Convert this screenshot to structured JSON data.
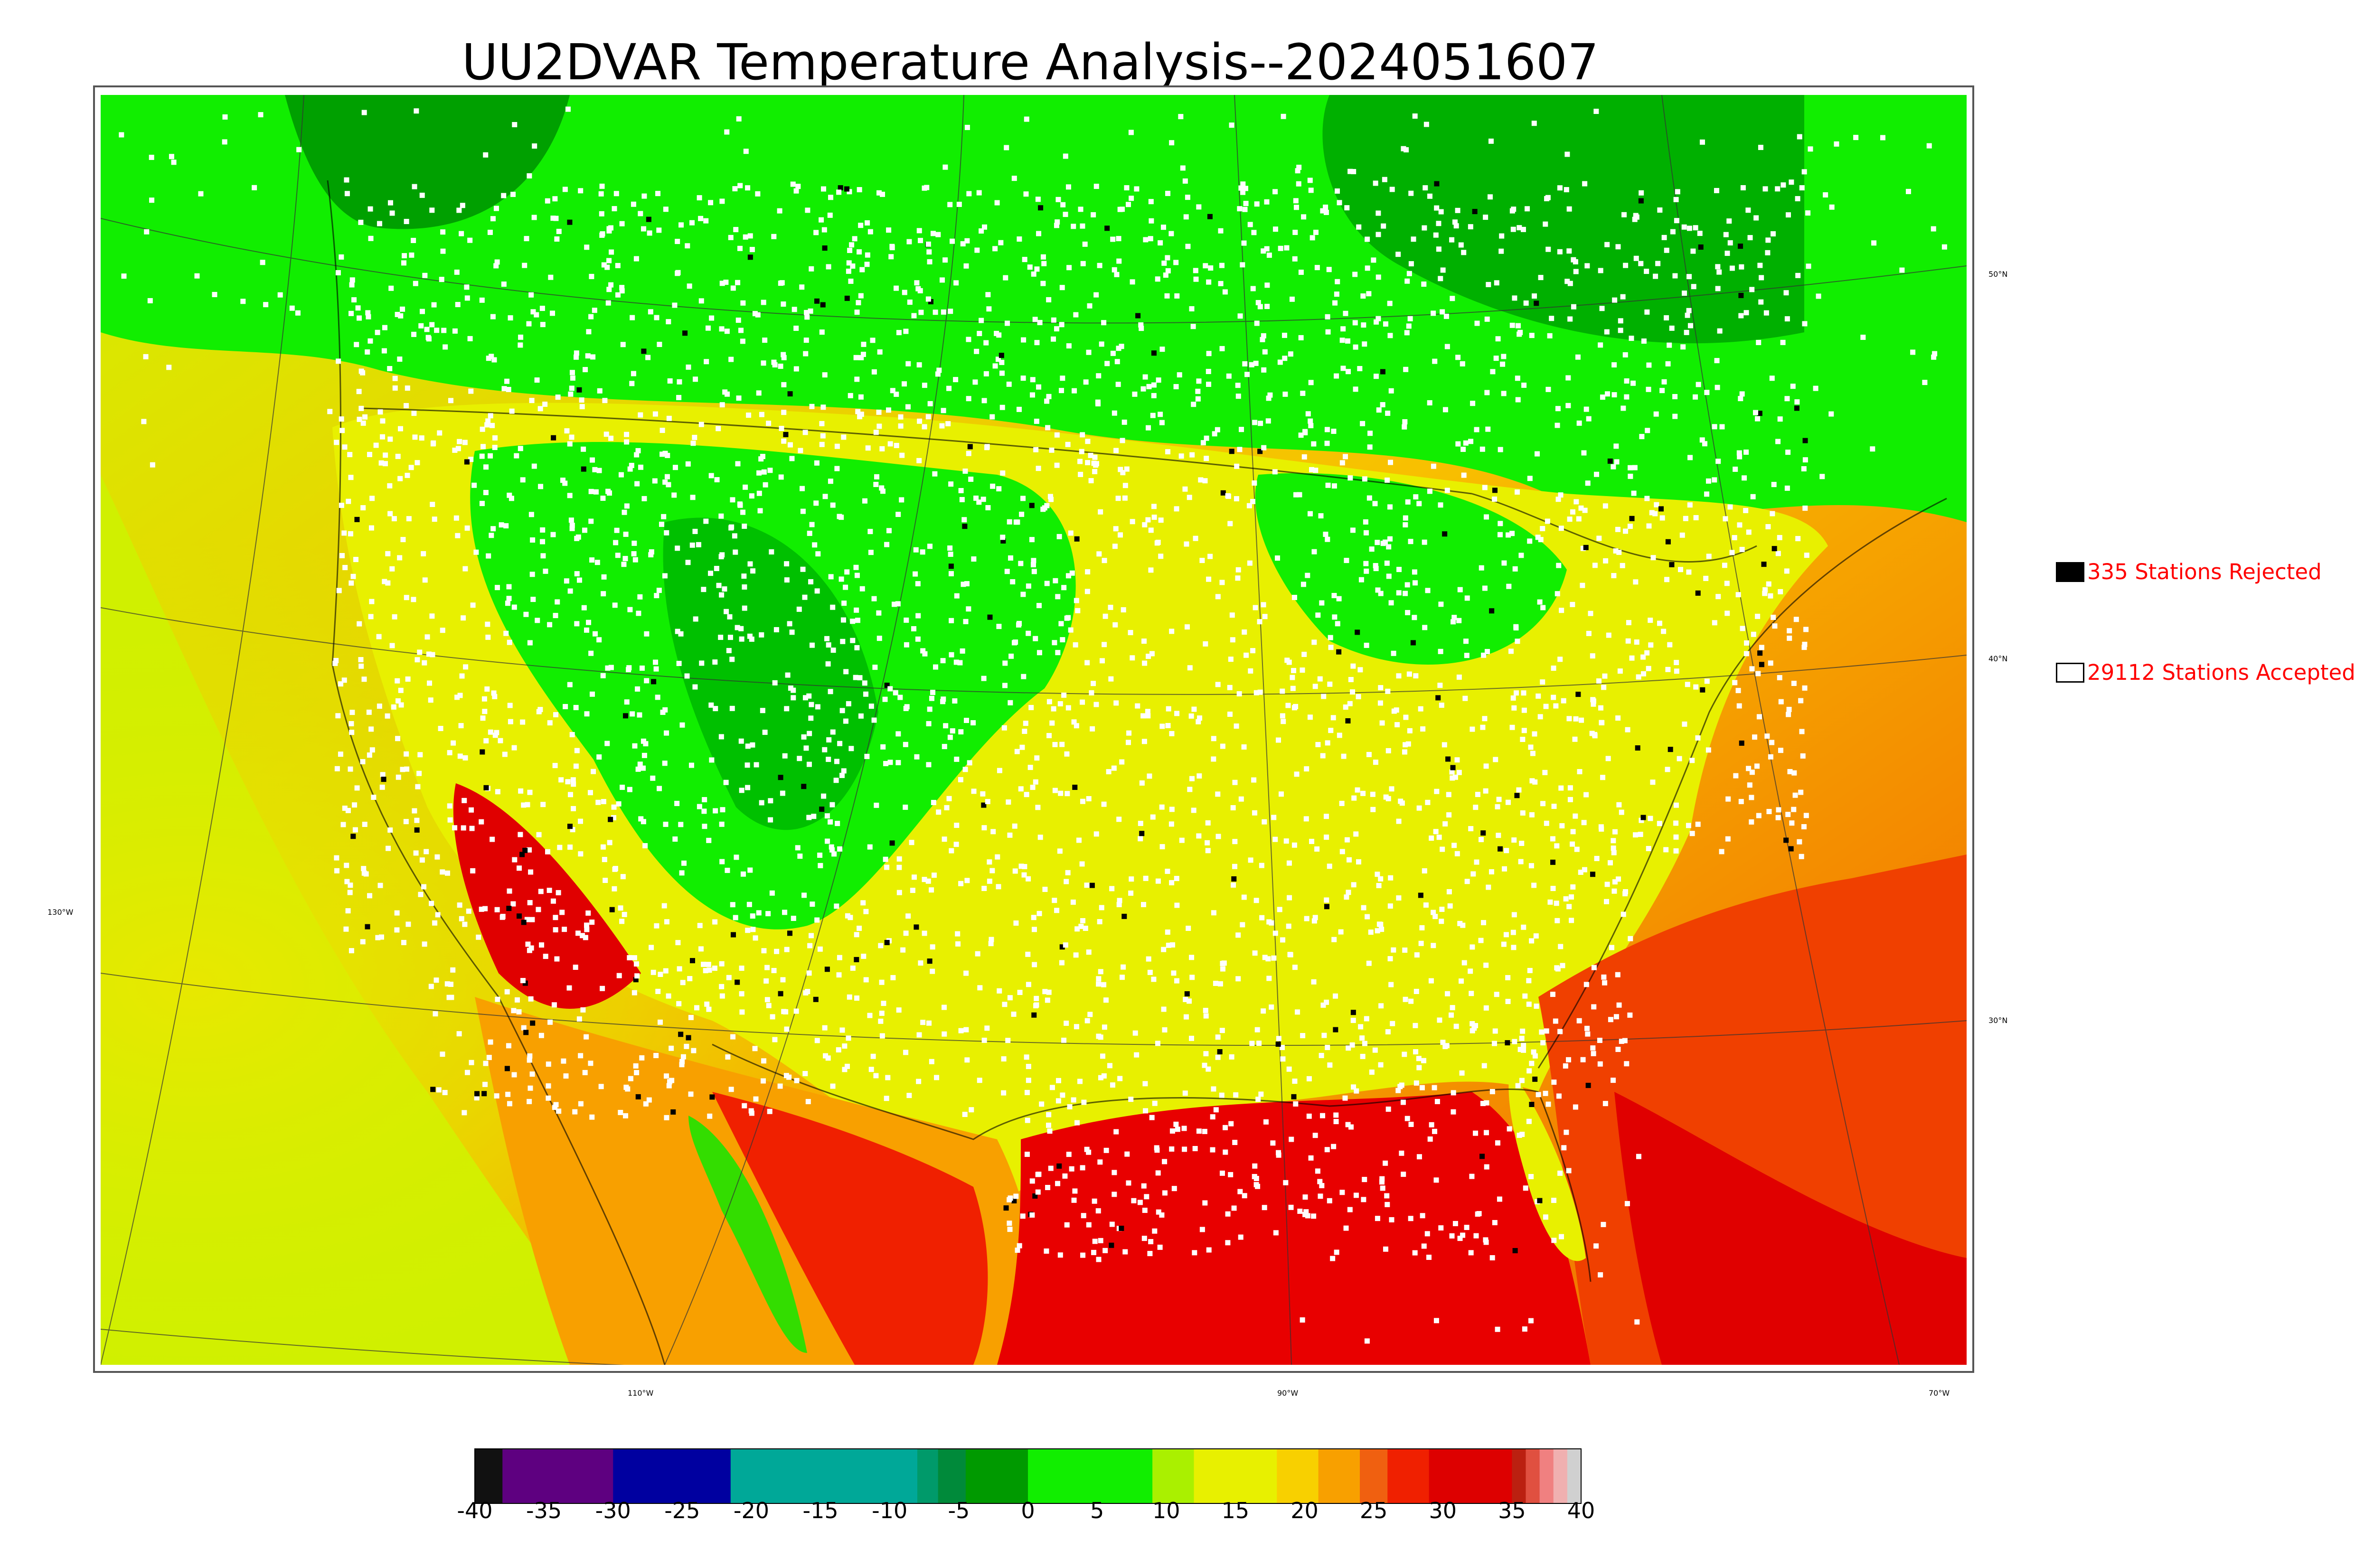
{
  "title": "UU2DVAR Temperature Analysis--2024051607",
  "legend": {
    "rejected": {
      "label": "335 Stations Rejected",
      "swatch_color": "#000000"
    },
    "accepted": {
      "label": "29112 Stations Accepted",
      "swatch_color": "#ffffff"
    },
    "text_color": "#ff0000"
  },
  "graticule_labels": {
    "lat": [
      "50°N",
      "40°N",
      "30°N"
    ],
    "lon": [
      "130°W",
      "110°W",
      "90°W",
      "70°W"
    ]
  },
  "colorbar": {
    "min": -40,
    "max": 40,
    "ticks": [
      "-40",
      "-35",
      "-30",
      "-25",
      "-20",
      "-15",
      "-10",
      "-5",
      "0",
      "5",
      "10",
      "15",
      "20",
      "25",
      "30",
      "35",
      "40"
    ],
    "segments": [
      {
        "from": -40,
        "to": -38,
        "color": "#111111"
      },
      {
        "from": -38,
        "to": -30,
        "color": "#5e0080"
      },
      {
        "from": -30,
        "to": -21.5,
        "color": "#0000a0"
      },
      {
        "from": -21.5,
        "to": -8,
        "color": "#00a898"
      },
      {
        "from": -8,
        "to": -6.5,
        "color": "#009a6a"
      },
      {
        "from": -6.5,
        "to": -4.5,
        "color": "#008a3a"
      },
      {
        "from": -4.5,
        "to": 0,
        "color": "#009a00"
      },
      {
        "from": 0,
        "to": 9,
        "color": "#11ee00"
      },
      {
        "from": 9,
        "to": 12,
        "color": "#aaf000"
      },
      {
        "from": 12,
        "to": 18,
        "color": "#e8f000"
      },
      {
        "from": 18,
        "to": 21,
        "color": "#f8d000"
      },
      {
        "from": 21,
        "to": 24,
        "color": "#f8a000"
      },
      {
        "from": 24,
        "to": 26,
        "color": "#f06010"
      },
      {
        "from": 26,
        "to": 29,
        "color": "#f02000"
      },
      {
        "from": 29,
        "to": 35,
        "color": "#dd0000"
      },
      {
        "from": 35,
        "to": 36,
        "color": "#bb2010"
      },
      {
        "from": 36,
        "to": 37,
        "color": "#e05040"
      },
      {
        "from": 37,
        "to": 38,
        "color": "#f08080"
      },
      {
        "from": 38,
        "to": 39,
        "color": "#f0b0b0"
      },
      {
        "from": 39,
        "to": 40,
        "color": "#d0d0d0"
      }
    ]
  },
  "colors": {
    "cold_green": "#11ee00",
    "dark_green": "#00a800",
    "warm_yellow": "#e8f000",
    "hot_orange": "#f8a000",
    "hot_red": "#e00000"
  }
}
